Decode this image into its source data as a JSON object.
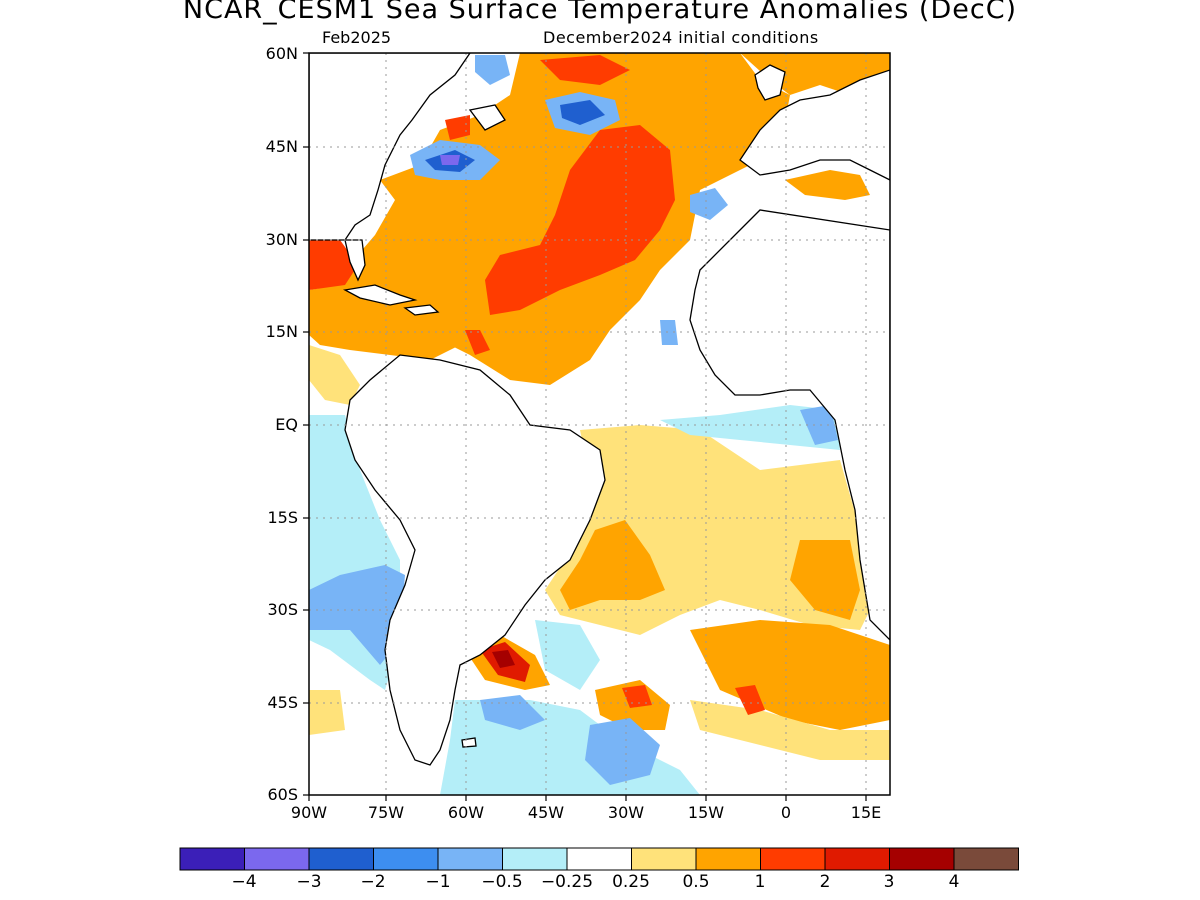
{
  "header": {
    "title": "NCAR_CESM1 Sea Surface Temperature Anomalies (DecC)",
    "forecast_month": "Feb2025",
    "initial_conditions": "December2024 initial conditions"
  },
  "axes": {
    "lat_labels": [
      "60N",
      "45N",
      "30N",
      "15N",
      "EQ",
      "15S",
      "30S",
      "45S",
      "60S"
    ],
    "lon_labels": [
      "90W",
      "75W",
      "60W",
      "45W",
      "30W",
      "15W",
      "0",
      "15E"
    ],
    "lat_range": [
      -60,
      60
    ],
    "lon_range": [
      -90,
      20
    ],
    "grid": "dotted"
  },
  "colorbar": {
    "colors": [
      "#3b1fb8",
      "#7b68ee",
      "#1f5fcf",
      "#3d8ef0",
      "#78b4f6",
      "#b4eef8",
      "#ffffff",
      "#ffe27a",
      "#ffa400",
      "#ff3c00",
      "#e01a00",
      "#a50000",
      "#7a4a3a"
    ],
    "labels": [
      "−4",
      "−3",
      "−2",
      "−1",
      "−0.5",
      "−0.25",
      "0.25",
      "0.5",
      "1",
      "2",
      "3",
      "4"
    ]
  }
}
